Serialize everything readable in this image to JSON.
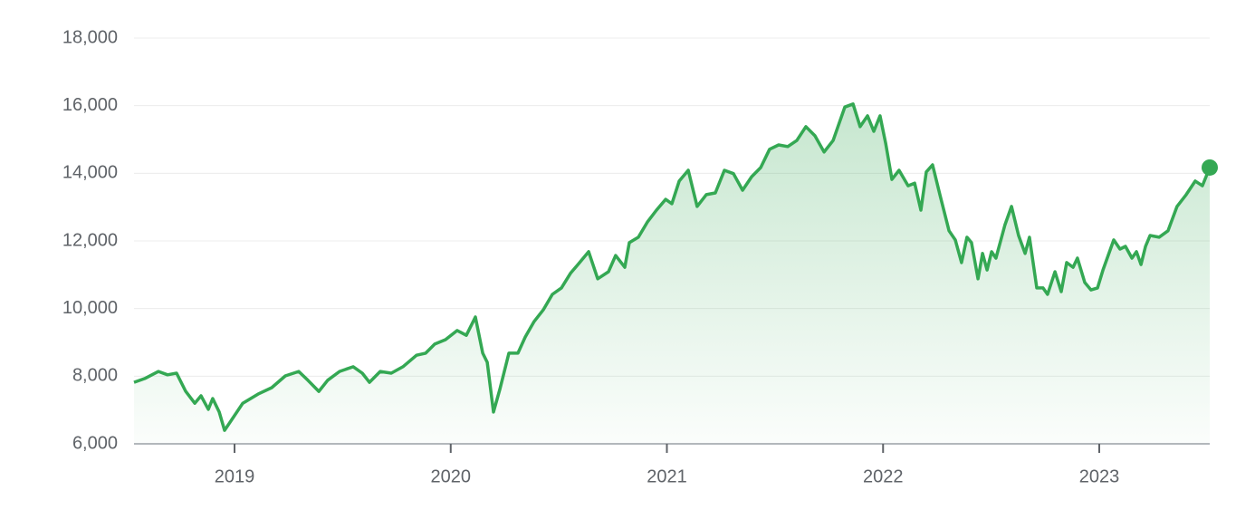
{
  "chart_data": {
    "type": "area",
    "color": "#34a853",
    "grid": true,
    "xlim": [
      2018.535,
      2023.511
    ],
    "xticks": [
      2019,
      2020,
      2021,
      2022,
      2023
    ],
    "ylim": [
      6000,
      18000
    ],
    "yticks": [
      {
        "value": 6000,
        "label": "6,000"
      },
      {
        "value": 8000,
        "label": "8,000"
      },
      {
        "value": 10000,
        "label": "10,000"
      },
      {
        "value": 12000,
        "label": "12,000"
      },
      {
        "value": 14000,
        "label": "14,000"
      },
      {
        "value": 16000,
        "label": "16,000"
      },
      {
        "value": 18000,
        "label": "18,000"
      }
    ],
    "x": [
      2018.535,
      2018.585,
      2018.648,
      2018.69,
      2018.732,
      2018.774,
      2018.816,
      2018.845,
      2018.879,
      2018.899,
      2018.929,
      2018.954,
      2018.996,
      2019.038,
      2019.109,
      2019.172,
      2019.235,
      2019.297,
      2019.339,
      2019.39,
      2019.431,
      2019.486,
      2019.549,
      2019.591,
      2019.624,
      2019.674,
      2019.725,
      2019.779,
      2019.842,
      2019.884,
      2019.926,
      2019.976,
      2020.03,
      2020.072,
      2020.114,
      2020.148,
      2020.169,
      2020.198,
      2020.227,
      2020.269,
      2020.311,
      2020.345,
      2020.386,
      2020.428,
      2020.47,
      2020.512,
      2020.554,
      2020.596,
      2020.638,
      2020.68,
      2020.73,
      2020.763,
      2020.805,
      2020.826,
      2020.868,
      2020.91,
      2020.952,
      2020.994,
      2021.023,
      2021.057,
      2021.099,
      2021.14,
      2021.182,
      2021.224,
      2021.266,
      2021.308,
      2021.35,
      2021.392,
      2021.434,
      2021.475,
      2021.517,
      2021.559,
      2021.601,
      2021.643,
      2021.685,
      2021.727,
      2021.769,
      2021.823,
      2021.861,
      2021.894,
      2021.928,
      2021.957,
      2021.986,
      2022.012,
      2022.041,
      2022.074,
      2022.116,
      2022.146,
      2022.175,
      2022.2,
      2022.229,
      2022.263,
      2022.305,
      2022.334,
      2022.363,
      2022.388,
      2022.409,
      2022.439,
      2022.46,
      2022.481,
      2022.502,
      2022.522,
      2022.564,
      2022.594,
      2022.627,
      2022.657,
      2022.677,
      2022.711,
      2022.74,
      2022.761,
      2022.795,
      2022.824,
      2022.849,
      2022.879,
      2022.899,
      2022.933,
      2022.962,
      2022.992,
      2023.017,
      2023.067,
      2023.096,
      2023.121,
      2023.151,
      2023.172,
      2023.193,
      2023.214,
      2023.235,
      2023.277,
      2023.318,
      2023.36,
      2023.402,
      2023.444,
      2023.477,
      2023.511
    ],
    "values": [
      7820,
      7930,
      8140,
      8040,
      8090,
      7550,
      7200,
      7420,
      7020,
      7340,
      6940,
      6400,
      6800,
      7200,
      7470,
      7660,
      8010,
      8140,
      7880,
      7550,
      7880,
      8140,
      8280,
      8090,
      7820,
      8140,
      8090,
      8280,
      8620,
      8680,
      8950,
      9080,
      9350,
      9210,
      9750,
      8680,
      8410,
      6940,
      7610,
      8680,
      8680,
      9160,
      9620,
      9960,
      10420,
      10610,
      11040,
      11360,
      11680,
      10880,
      11090,
      11570,
      11220,
      11950,
      12110,
      12560,
      12910,
      13230,
      13100,
      13770,
      14090,
      13020,
      13370,
      13420,
      14090,
      13990,
      13500,
      13900,
      14170,
      14710,
      14840,
      14790,
      14970,
      15380,
      15110,
      14630,
      14970,
      15960,
      16050,
      15380,
      15700,
      15240,
      15700,
      14890,
      13820,
      14090,
      13630,
      13710,
      12910,
      14040,
      14250,
      13370,
      12300,
      12030,
      11360,
      12110,
      11950,
      10880,
      11630,
      11140,
      11680,
      11490,
      12480,
      13020,
      12160,
      11630,
      12110,
      10610,
      10610,
      10420,
      11090,
      10500,
      11360,
      11220,
      11490,
      10770,
      10550,
      10610,
      11140,
      12030,
      11760,
      11840,
      11490,
      11680,
      11300,
      11840,
      12160,
      12110,
      12300,
      13020,
      13370,
      13770,
      13630,
      14170
    ]
  }
}
